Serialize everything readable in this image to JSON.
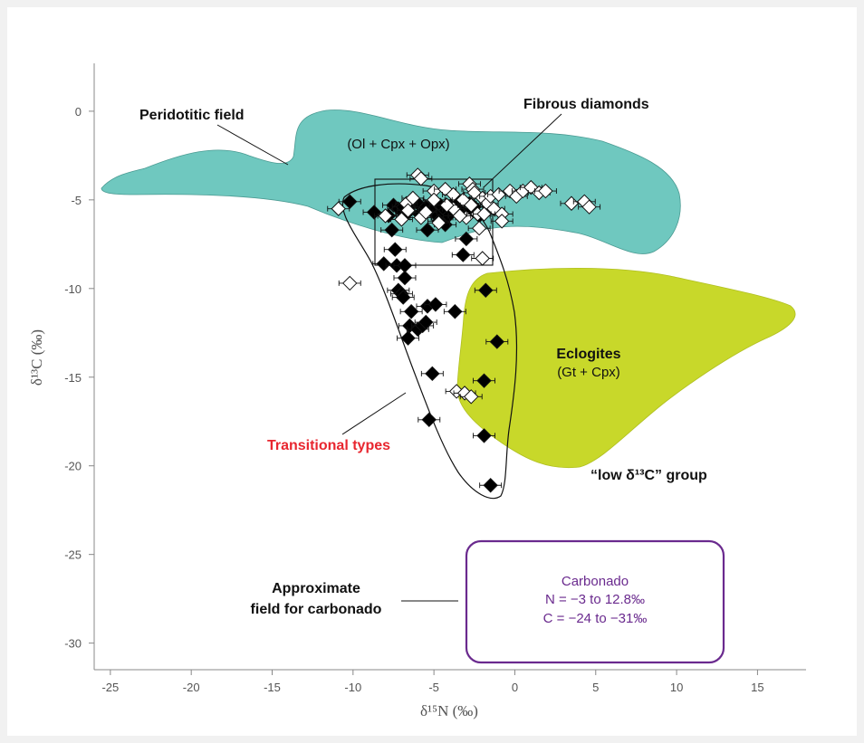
{
  "chart_data": {
    "type": "scatter",
    "xlabel": "δ¹⁵N (‰)",
    "ylabel": "δ¹³C (‰)",
    "xlim": [
      -26,
      18
    ],
    "ylim": [
      -31.5,
      2.7
    ],
    "x_ticks": [
      -25,
      -20,
      -15,
      -10,
      -5,
      0,
      5,
      10,
      15
    ],
    "y_ticks": [
      0,
      -5,
      -10,
      -15,
      -20,
      -25,
      -30
    ],
    "x_tick_labels": [
      "-25",
      "-20",
      "-15",
      "-10",
      "-5",
      "0",
      "5",
      "10",
      "15"
    ],
    "y_tick_labels": [
      "0",
      "-5",
      "-10",
      "-15",
      "-20",
      "-25",
      "-30"
    ],
    "grid": false,
    "colors": {
      "peridotitic_field": "#6fc8bf",
      "eclogite_field": "#c8d82a",
      "carbonado_box": "#6a2a8e",
      "transitional_label": "#e8262f",
      "filled_marker": "#000000",
      "open_marker": "#ffffff"
    },
    "series": [
      {
        "marker": "filled-diamond",
        "points": [
          [
            -10.2,
            -5.1
          ],
          [
            -8.7,
            -5.7
          ],
          [
            -8.1,
            -8.6
          ],
          [
            -7.6,
            -6.7
          ],
          [
            -7.4,
            -7.8
          ],
          [
            -7.3,
            -8.7
          ],
          [
            -7.2,
            -10.1
          ],
          [
            -7.0,
            -10.3
          ],
          [
            -6.9,
            -10.5
          ],
          [
            -6.8,
            -8.7
          ],
          [
            -6.8,
            -9.4
          ],
          [
            -6.6,
            -12.8
          ],
          [
            -6.5,
            -12.1
          ],
          [
            -6.4,
            -11.3
          ],
          [
            -6.0,
            -12.3
          ],
          [
            -5.7,
            -12.1
          ],
          [
            -5.5,
            -11.9
          ],
          [
            -5.4,
            -11.0
          ],
          [
            -4.9,
            -10.9
          ],
          [
            -5.4,
            -6.7
          ],
          [
            -5.1,
            -14.8
          ],
          [
            -5.3,
            -17.4
          ],
          [
            -4.5,
            -6.0
          ],
          [
            -4.3,
            -6.4
          ],
          [
            -3.7,
            -11.3
          ],
          [
            -3.2,
            -8.1
          ],
          [
            -3.0,
            -7.2
          ],
          [
            -1.8,
            -10.1
          ],
          [
            -1.1,
            -13.0
          ],
          [
            -1.9,
            -15.2
          ],
          [
            -1.9,
            -18.3
          ],
          [
            -1.5,
            -21.1
          ],
          [
            -7.5,
            -5.3
          ],
          [
            -7.2,
            -5.5
          ],
          [
            -6.7,
            -5.8
          ],
          [
            -6.4,
            -5.3
          ],
          [
            -6.0,
            -5.2
          ],
          [
            -5.5,
            -5.4
          ],
          [
            -5.2,
            -5.6
          ],
          [
            -4.9,
            -5.1
          ],
          [
            -4.6,
            -5.3
          ],
          [
            -4.4,
            -5.7
          ],
          [
            -4.1,
            -5.9
          ],
          [
            -3.8,
            -5.2
          ],
          [
            -3.5,
            -5.5
          ],
          [
            -3.2,
            -5.7
          ],
          [
            -2.8,
            -5.2
          ],
          [
            -2.5,
            -5.4
          ],
          [
            -2.2,
            -5.9
          ],
          [
            -2.9,
            -5.8
          ],
          [
            -3.6,
            -5.0
          ],
          [
            -4.8,
            -5.9
          ],
          [
            -5.9,
            -5.8
          ],
          [
            -6.9,
            -5.4
          ],
          [
            -7.8,
            -5.9
          ],
          [
            -4.7,
            -6.2
          ]
        ]
      },
      {
        "marker": "open-diamond",
        "points": [
          [
            -10.9,
            -5.5
          ],
          [
            -10.2,
            -9.7
          ],
          [
            -8.0,
            -5.9
          ],
          [
            -7.0,
            -6.1
          ],
          [
            -6.7,
            -5.2
          ],
          [
            -6.0,
            -3.6
          ],
          [
            -5.8,
            -3.8
          ],
          [
            -5.8,
            -6.0
          ],
          [
            -5.0,
            -4.5
          ],
          [
            -4.7,
            -6.3
          ],
          [
            -4.3,
            -4.4
          ],
          [
            -3.8,
            -4.7
          ],
          [
            -3.8,
            -5.5
          ],
          [
            -3.2,
            -5.0
          ],
          [
            -3.0,
            -6.0
          ],
          [
            -2.8,
            -4.1
          ],
          [
            -2.6,
            -4.4
          ],
          [
            -2.5,
            -4.6
          ],
          [
            -2.3,
            -5.8
          ],
          [
            -2.2,
            -6.6
          ],
          [
            -2.0,
            -8.3
          ],
          [
            -2.0,
            -4.9
          ],
          [
            -1.7,
            -5.2
          ],
          [
            -1.5,
            -4.8
          ],
          [
            -1.3,
            -5.5
          ],
          [
            -1.0,
            -4.7
          ],
          [
            -0.8,
            -5.8
          ],
          [
            -0.8,
            -6.2
          ],
          [
            -0.3,
            -4.5
          ],
          [
            0.1,
            -4.8
          ],
          [
            0.5,
            -4.5
          ],
          [
            1.0,
            -4.3
          ],
          [
            1.5,
            -4.6
          ],
          [
            1.9,
            -4.5
          ],
          [
            3.5,
            -5.2
          ],
          [
            4.3,
            -5.1
          ],
          [
            4.6,
            -5.4
          ],
          [
            -3.6,
            -15.8
          ],
          [
            -3.1,
            -15.9
          ],
          [
            -2.7,
            -16.1
          ],
          [
            -6.6,
            -5.6
          ],
          [
            -5.5,
            -5.7
          ],
          [
            -4.2,
            -5.3
          ],
          [
            -3.4,
            -5.9
          ],
          [
            -2.7,
            -5.3
          ],
          [
            -1.9,
            -5.8
          ],
          [
            -6.3,
            -4.9
          ],
          [
            -5.0,
            -5.0
          ]
        ]
      }
    ],
    "annotations": {
      "peridotitic": "Peridotitic field",
      "peridotitic_sub": "(Ol + Cpx + Opx)",
      "fibrous": "Fibrous diamonds",
      "eclogites": "Eclogites",
      "eclogites_sub": "(Gt + Cpx)",
      "low_group": "“low δ¹³C” group",
      "transitional": "Transitional types",
      "carbonado_field_line1": "Approximate",
      "carbonado_field_line2": "field",
      "carbonado_field_line3": "for carbonado",
      "carbonado_title": "Carbonado",
      "carbonado_n": "N = −3 to 12.8‰",
      "carbonado_c": "C = −24 to −31‰"
    }
  }
}
